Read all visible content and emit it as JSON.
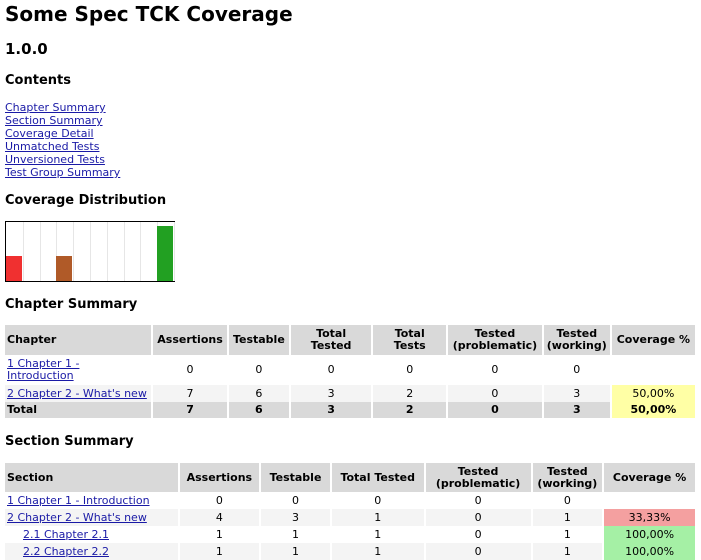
{
  "page": {
    "title": "Some Spec TCK Coverage",
    "version": "1.0.0",
    "contents_heading": "Contents",
    "toc": [
      "Chapter Summary",
      "Section Summary",
      "Coverage Detail",
      "Unmatched Tests",
      "Unversioned Tests",
      "Test Group Summary"
    ]
  },
  "distribution": {
    "heading": "Coverage Distribution",
    "bars": [
      {
        "fraction": 0.43,
        "color": "#f03030"
      },
      {
        "fraction": 0,
        "color": "#ffffff"
      },
      {
        "fraction": 0,
        "color": "#ffffff"
      },
      {
        "fraction": 0.43,
        "color": "#b05a28"
      },
      {
        "fraction": 0,
        "color": "#ffffff"
      },
      {
        "fraction": 0,
        "color": "#ffffff"
      },
      {
        "fraction": 0,
        "color": "#ffffff"
      },
      {
        "fraction": 0,
        "color": "#ffffff"
      },
      {
        "fraction": 0,
        "color": "#ffffff"
      },
      {
        "fraction": 0.93,
        "color": "#22a022"
      }
    ]
  },
  "chapter_summary": {
    "heading": "Chapter Summary",
    "headers": {
      "chapter": "Chapter",
      "assertions": "Assertions",
      "testable": "Testable",
      "total_tested_1": "Total",
      "total_tested_2": "Tested",
      "total_tests_1": "Total",
      "total_tests_2": "Tests",
      "tested_prob_1": "Tested",
      "tested_prob_2": "(problematic)",
      "tested_work_1": "Tested",
      "tested_work_2": "(working)",
      "coverage": "Coverage %"
    },
    "rows": [
      {
        "chapter": "1 Chapter 1 -",
        "chapter_2": "Introduction",
        "assertions": "0",
        "testable": "0",
        "total_tested": "0",
        "total_tests": "0",
        "problematic": "0",
        "working": "0",
        "coverage": ""
      },
      {
        "chapter": "2 Chapter 2 - What's new",
        "assertions": "7",
        "testable": "6",
        "total_tested": "3",
        "total_tests": "2",
        "problematic": "0",
        "working": "3",
        "coverage": "50,00%"
      }
    ],
    "total": {
      "label": "Total",
      "assertions": "7",
      "testable": "6",
      "total_tested": "3",
      "total_tests": "2",
      "problematic": "0",
      "working": "3",
      "coverage": "50,00%"
    }
  },
  "section_summary": {
    "heading": "Section Summary",
    "headers": {
      "section": "Section",
      "assertions": "Assertions",
      "testable": "Testable",
      "total_tested": "Total Tested",
      "tested_prob_1": "Tested",
      "tested_prob_2": "(problematic)",
      "tested_work_1": "Tested",
      "tested_work_2": "(working)",
      "coverage": "Coverage %"
    },
    "rows": [
      {
        "section": "1 Chapter 1 - Introduction",
        "assertions": "0",
        "testable": "0",
        "total_tested": "0",
        "problematic": "0",
        "working": "0",
        "coverage": ""
      },
      {
        "section": "2 Chapter 2 - What's new",
        "assertions": "4",
        "testable": "3",
        "total_tested": "1",
        "problematic": "0",
        "working": "1",
        "coverage": "33,33%"
      },
      {
        "section": "2.1 Chapter 2.1",
        "assertions": "1",
        "testable": "1",
        "total_tested": "1",
        "problematic": "0",
        "working": "1",
        "coverage": "100,00%"
      },
      {
        "section": "2.2 Chapter 2.2",
        "assertions": "1",
        "testable": "1",
        "total_tested": "1",
        "problematic": "0",
        "working": "1",
        "coverage": "100,00%"
      }
    ]
  }
}
